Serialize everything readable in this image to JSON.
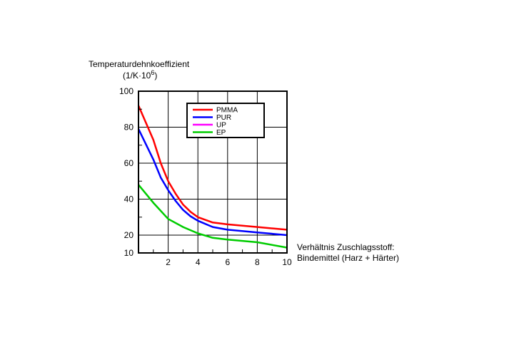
{
  "chart_data": {
    "type": "line",
    "ylabel": "Temperaturdehnkoeffizient",
    "yunit": "(1/K·10",
    "yunit_exp": "6",
    "yunit_close": ")",
    "xlabel_line1": "Verhältnis Zuschlagsstoff:",
    "xlabel_line2": "Bindemittel (Harz + Härter)",
    "xlim": [
      0,
      10
    ],
    "ylim": [
      10,
      100
    ],
    "x_ticks": [
      2,
      4,
      6,
      8,
      10
    ],
    "x_tick_labels": [
      "2",
      "4",
      "6",
      "8",
      "10"
    ],
    "y_ticks": [
      10,
      20,
      40,
      60,
      80,
      100
    ],
    "y_tick_labels": [
      "10",
      "20",
      "40",
      "60",
      "80",
      "100"
    ],
    "grid": true,
    "legend_position": "top-center",
    "series": [
      {
        "name": "PMMA",
        "color": "#ff0000",
        "x": [
          0,
          1,
          1.5,
          2,
          2.5,
          3,
          3.5,
          4,
          5,
          6,
          8,
          10
        ],
        "y": [
          92,
          73,
          60,
          50,
          43,
          37,
          33,
          30,
          27,
          26,
          24.5,
          23
        ]
      },
      {
        "name": "PUR",
        "color": "#0000ff",
        "x": [
          0,
          1,
          1.5,
          2,
          2.5,
          3,
          3.5,
          4,
          5,
          6,
          8,
          10
        ],
        "y": [
          79,
          62,
          52,
          45,
          39,
          34,
          30.5,
          28,
          24.5,
          23,
          21.5,
          20
        ]
      },
      {
        "name": "UP",
        "color": "#ff00ff",
        "x": [],
        "y": []
      },
      {
        "name": "EP",
        "color": "#00cc00",
        "x": [
          0,
          1,
          2,
          3,
          4,
          5,
          6,
          8,
          10
        ],
        "y": [
          48,
          38,
          29,
          24.5,
          21,
          18.5,
          17.5,
          16,
          13
        ]
      }
    ]
  }
}
